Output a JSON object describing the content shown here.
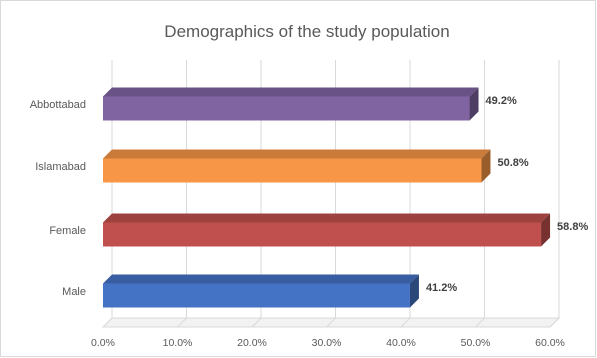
{
  "chart_data": {
    "type": "bar",
    "orientation": "horizontal",
    "style": "3d",
    "title": "Demographics of the study population",
    "categories": [
      "Male",
      "Female",
      "Islamabad",
      "Abbottabad"
    ],
    "values": [
      41.2,
      58.8,
      50.8,
      49.2
    ],
    "value_labels": [
      "41.2%",
      "58.8%",
      "50.8%",
      "49.2%"
    ],
    "colors": [
      "#4472c4",
      "#c0504d",
      "#f79646",
      "#8064a2"
    ],
    "xlim": [
      0,
      60
    ],
    "xticks": [
      0,
      10,
      20,
      30,
      40,
      50,
      60
    ],
    "xtick_labels": [
      "0.0%",
      "10.0%",
      "20.0%",
      "30.0%",
      "40.0%",
      "50.0%",
      "60.0%"
    ],
    "grid": true,
    "legend": "none"
  }
}
